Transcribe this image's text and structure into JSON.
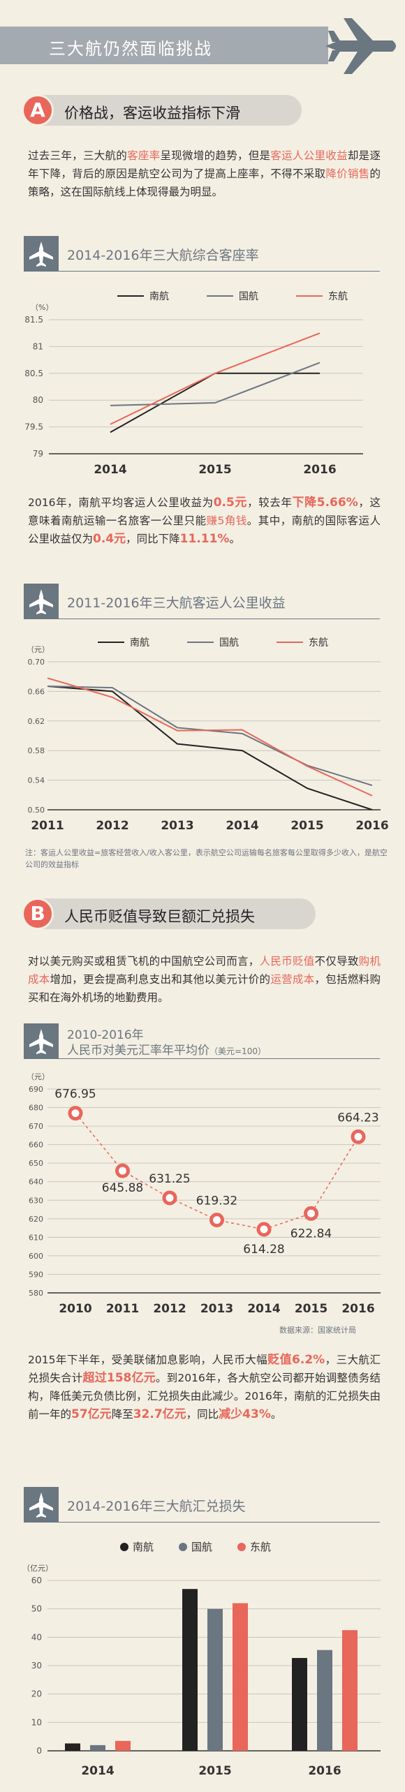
{
  "header": {
    "title": "三大航仍然面临挑战"
  },
  "section_a": {
    "letter": "A",
    "title": "价格战，客运收益指标下滑",
    "paragraph": [
      {
        "t": "过去三年，三大航的"
      },
      {
        "t": "客座率",
        "c": "hl"
      },
      {
        "t": "呈现微增的趋势，但是"
      },
      {
        "t": "客运人公里收益",
        "c": "hl"
      },
      {
        "t": "却是逐年下降，背后的原因是航空公司为了提高上座率，不得不采取"
      },
      {
        "t": "降价销售",
        "c": "hl"
      },
      {
        "t": "的策略，这在国际航线上体现得最为明显。"
      }
    ],
    "paragraph2": [
      {
        "t": "2016年，南航平均客运人公里收益为"
      },
      {
        "t": "0.5元",
        "c": "hlb"
      },
      {
        "t": "，较去年"
      },
      {
        "t": "下降5.66%",
        "c": "hlb"
      },
      {
        "t": "，这意味着南航运输一名旅客一公里只能"
      },
      {
        "t": "赚5角钱",
        "c": "hl"
      },
      {
        "t": "。其中，南航的国际客运人公里收益仅为"
      },
      {
        "t": "0.4元",
        "c": "hlb"
      },
      {
        "t": "，同比下降"
      },
      {
        "t": "11.11%",
        "c": "hlb"
      },
      {
        "t": "。"
      }
    ]
  },
  "section_b": {
    "letter": "B",
    "title": "人民币贬值导致巨额汇兑损失",
    "paragraph": [
      {
        "t": "对以美元购买或租赁飞机的中国航空公司而言，"
      },
      {
        "t": "人民币贬值",
        "c": "hl"
      },
      {
        "t": "不仅导致"
      },
      {
        "t": "购机成本",
        "c": "hl"
      },
      {
        "t": "增加，更会提高利息支出和其他以美元计价的"
      },
      {
        "t": "运营成本",
        "c": "hl"
      },
      {
        "t": "，包括燃料购买和在海外机场的地勤费用。"
      }
    ],
    "paragraph2": [
      {
        "t": "2015年下半年，受美联储加息影响，人民币大幅"
      },
      {
        "t": "贬值6.2%",
        "c": "hlb"
      },
      {
        "t": "，三大航汇兑损失合计"
      },
      {
        "t": "超过158亿元",
        "c": "hlb"
      },
      {
        "t": "。到2016年，各大航空公司都开始调整债务结构，降低美元负债比例，汇兑损失由此减少。2016年，南航的汇兑损失由前一年的"
      },
      {
        "t": "57亿元",
        "c": "hlb"
      },
      {
        "t": "降至"
      },
      {
        "t": "32.7亿元",
        "c": "hlb"
      },
      {
        "t": "，同比"
      },
      {
        "t": "减少43%",
        "c": "hlb"
      },
      {
        "t": "。"
      }
    ]
  },
  "colors": {
    "southern": "#222222",
    "air_china": "#6a7680",
    "eastern": "#e8665a",
    "accent": "#e8665a"
  },
  "chart_data": [
    {
      "type": "line",
      "title": "2014-2016年三大航综合客座率",
      "ylabel": "（%）",
      "x": [
        "2014",
        "2015",
        "2016"
      ],
      "ylim": [
        79,
        81.5
      ],
      "yticks": [
        "79",
        "79.5",
        "80",
        "80.5",
        "81",
        "81.5"
      ],
      "series": [
        {
          "name": "南航",
          "values": [
            79.4,
            80.5,
            80.5
          ]
        },
        {
          "name": "国航",
          "values": [
            79.9,
            79.95,
            80.7
          ]
        },
        {
          "name": "东航",
          "values": [
            79.55,
            80.5,
            81.25
          ]
        }
      ]
    },
    {
      "type": "line",
      "title": "2011-2016年三大航客运人公里收益",
      "ylabel": "（元）",
      "x": [
        "2011",
        "2012",
        "2013",
        "2014",
        "2015",
        "2016"
      ],
      "ylim": [
        0.5,
        0.7
      ],
      "yticks": [
        "0.50",
        "0.54",
        "0.58",
        "0.62",
        "0.66",
        "0.70"
      ],
      "series": [
        {
          "name": "南航",
          "values": [
            0.667,
            0.66,
            0.589,
            0.58,
            0.529,
            0.5
          ]
        },
        {
          "name": "国航",
          "values": [
            0.667,
            0.665,
            0.611,
            0.603,
            0.56,
            0.533
          ]
        },
        {
          "name": "东航",
          "values": [
            0.678,
            0.652,
            0.607,
            0.608,
            0.559,
            0.519
          ]
        }
      ],
      "note": "注：客运人公里收益=旅客经营收入/收入客公里，表示航空公司运输每名旅客每公里取得多少收入，是航空公司的效益指标"
    },
    {
      "type": "line",
      "title": "2010-2016年",
      "subtitle": "人民币对美元汇率年平均价",
      "subtitle_unit": "（美元=100）",
      "ylabel": "（元）",
      "x": [
        "2010",
        "2011",
        "2012",
        "2013",
        "2014",
        "2015",
        "2016"
      ],
      "ylim": [
        580,
        690
      ],
      "yticks": [
        "580",
        "590",
        "600",
        "610",
        "620",
        "630",
        "640",
        "650",
        "660",
        "670",
        "680",
        "690"
      ],
      "series": [
        {
          "values": [
            676.95,
            645.88,
            631.25,
            619.32,
            614.28,
            622.84,
            664.23
          ],
          "labels": [
            "676.95",
            "645.88",
            "631.25",
            "619.32",
            "614.28",
            "622.84",
            "664.23"
          ]
        }
      ],
      "source": "数据来源：国家统计局"
    },
    {
      "type": "bar",
      "title": "2014-2016年三大航汇兑损失",
      "ylabel": "（亿元）",
      "categories": [
        "2014",
        "2015",
        "2016"
      ],
      "ylim": [
        0,
        60
      ],
      "yticks": [
        "0",
        "10",
        "20",
        "30",
        "40",
        "50",
        "60"
      ],
      "series": [
        {
          "name": "南航",
          "values": [
            2.6,
            57,
            32.7
          ]
        },
        {
          "name": "国航",
          "values": [
            2,
            50,
            35.5
          ]
        },
        {
          "name": "东航",
          "values": [
            3.5,
            52,
            42.5
          ]
        }
      ]
    }
  ]
}
